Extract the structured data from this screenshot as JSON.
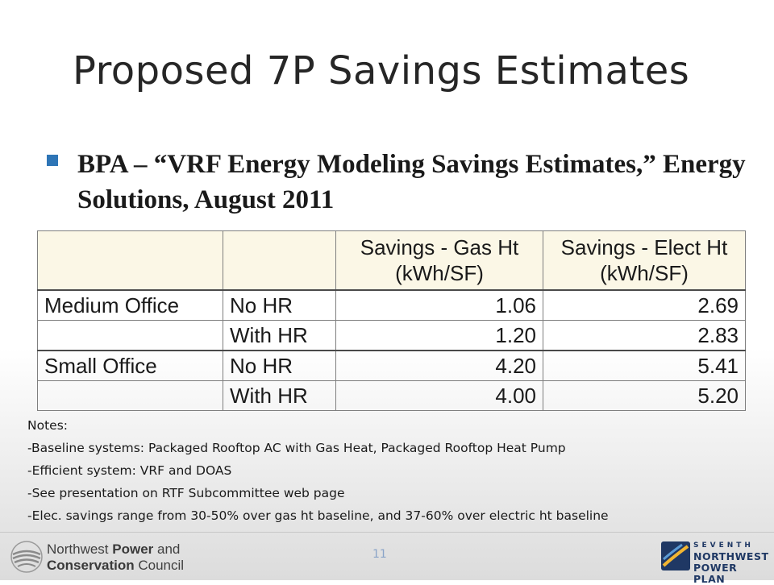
{
  "slide": {
    "title": "Proposed 7P Savings Estimates",
    "bullet": "BPA – “VRF Energy Modeling Savings Estimates,” Energy Solutions, August 2011",
    "page_number": "11"
  },
  "table": {
    "headers": [
      "",
      "",
      "Savings - Gas Ht\n(kWh/SF)",
      "Savings - Elect Ht\n(kWh/SF)"
    ],
    "header_gas_line1": "Savings - Gas Ht",
    "header_gas_line2": "(kWh/SF)",
    "header_elec_line1": "Savings - Elect Ht",
    "header_elec_line2": "(kWh/SF)",
    "rows": [
      {
        "building": "Medium Office",
        "case": "No HR",
        "gas": "1.06",
        "elec": "2.69"
      },
      {
        "building": "",
        "case": "With HR",
        "gas": "1.20",
        "elec": "2.83"
      },
      {
        "building": "Small Office",
        "case": "No HR",
        "gas": "4.20",
        "elec": "5.41"
      },
      {
        "building": "",
        "case": "With HR",
        "gas": "4.00",
        "elec": "5.20"
      }
    ]
  },
  "notes": {
    "heading": "Notes:",
    "items": [
      "-Baseline systems:  Packaged Rooftop AC with Gas Heat, Packaged Rooftop Heat Pump",
      "-Efficient system:  VRF and DOAS",
      "-See presentation on RTF Subcommittee web page",
      "-Elec. savings range from 30-50% over gas ht baseline, and 37-60% over electric ht baseline"
    ]
  },
  "footer": {
    "left_logo_line1_a": "Northwest ",
    "left_logo_line1_b": "Power",
    "left_logo_line1_c": " and",
    "left_logo_line2_a": "Conservation",
    "left_logo_line2_b": " Council",
    "right_logo_line1": "SEVENTH",
    "right_logo_line2": "NORTHWEST",
    "right_logo_line3": "POWER PLAN"
  },
  "colors": {
    "bullet": "#2e75b6",
    "header_fill": "#fbf7e6",
    "logo_blue": "#1f3864"
  }
}
